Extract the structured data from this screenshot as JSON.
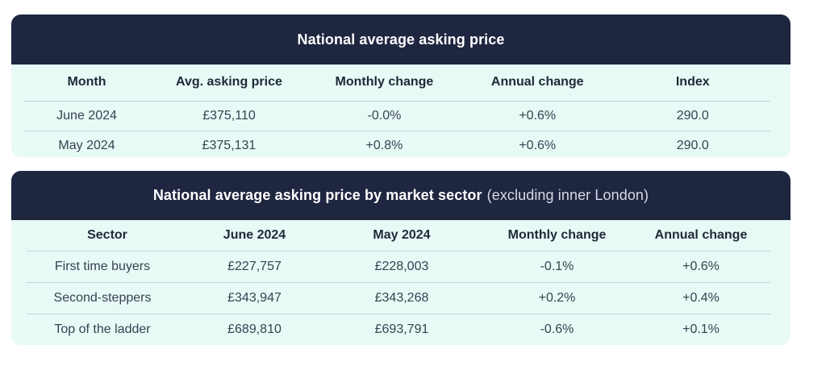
{
  "table1": {
    "title": "National average asking price",
    "columns": [
      "Month",
      "Avg. asking price",
      "Monthly change",
      "Annual change",
      "Index"
    ],
    "rows": [
      [
        "June 2024",
        "£375,110",
        "-0.0%",
        "+0.6%",
        "290.0"
      ],
      [
        "May 2024",
        "£375,131",
        "+0.8%",
        "+0.6%",
        "290.0"
      ]
    ]
  },
  "table2": {
    "title": "National average asking price by market sector",
    "subtitle": "(excluding inner London)",
    "columns": [
      "Sector",
      "June 2024",
      "May 2024",
      "Monthly change",
      "Annual change"
    ],
    "rows": [
      [
        "First time buyers",
        "£227,757",
        "£228,003",
        "-0.1%",
        "+0.6%"
      ],
      [
        "Second-steppers",
        "£343,947",
        "£343,268",
        "+0.2%",
        "+0.4%"
      ],
      [
        "Top of the ladder",
        "£689,810",
        "£693,791",
        "-0.6%",
        "+0.1%"
      ]
    ]
  },
  "colors": {
    "header_background": "#1f2640",
    "header_text": "#ffffff",
    "card_background": "#e8faf6",
    "row_divider": "#c7d3d6"
  }
}
